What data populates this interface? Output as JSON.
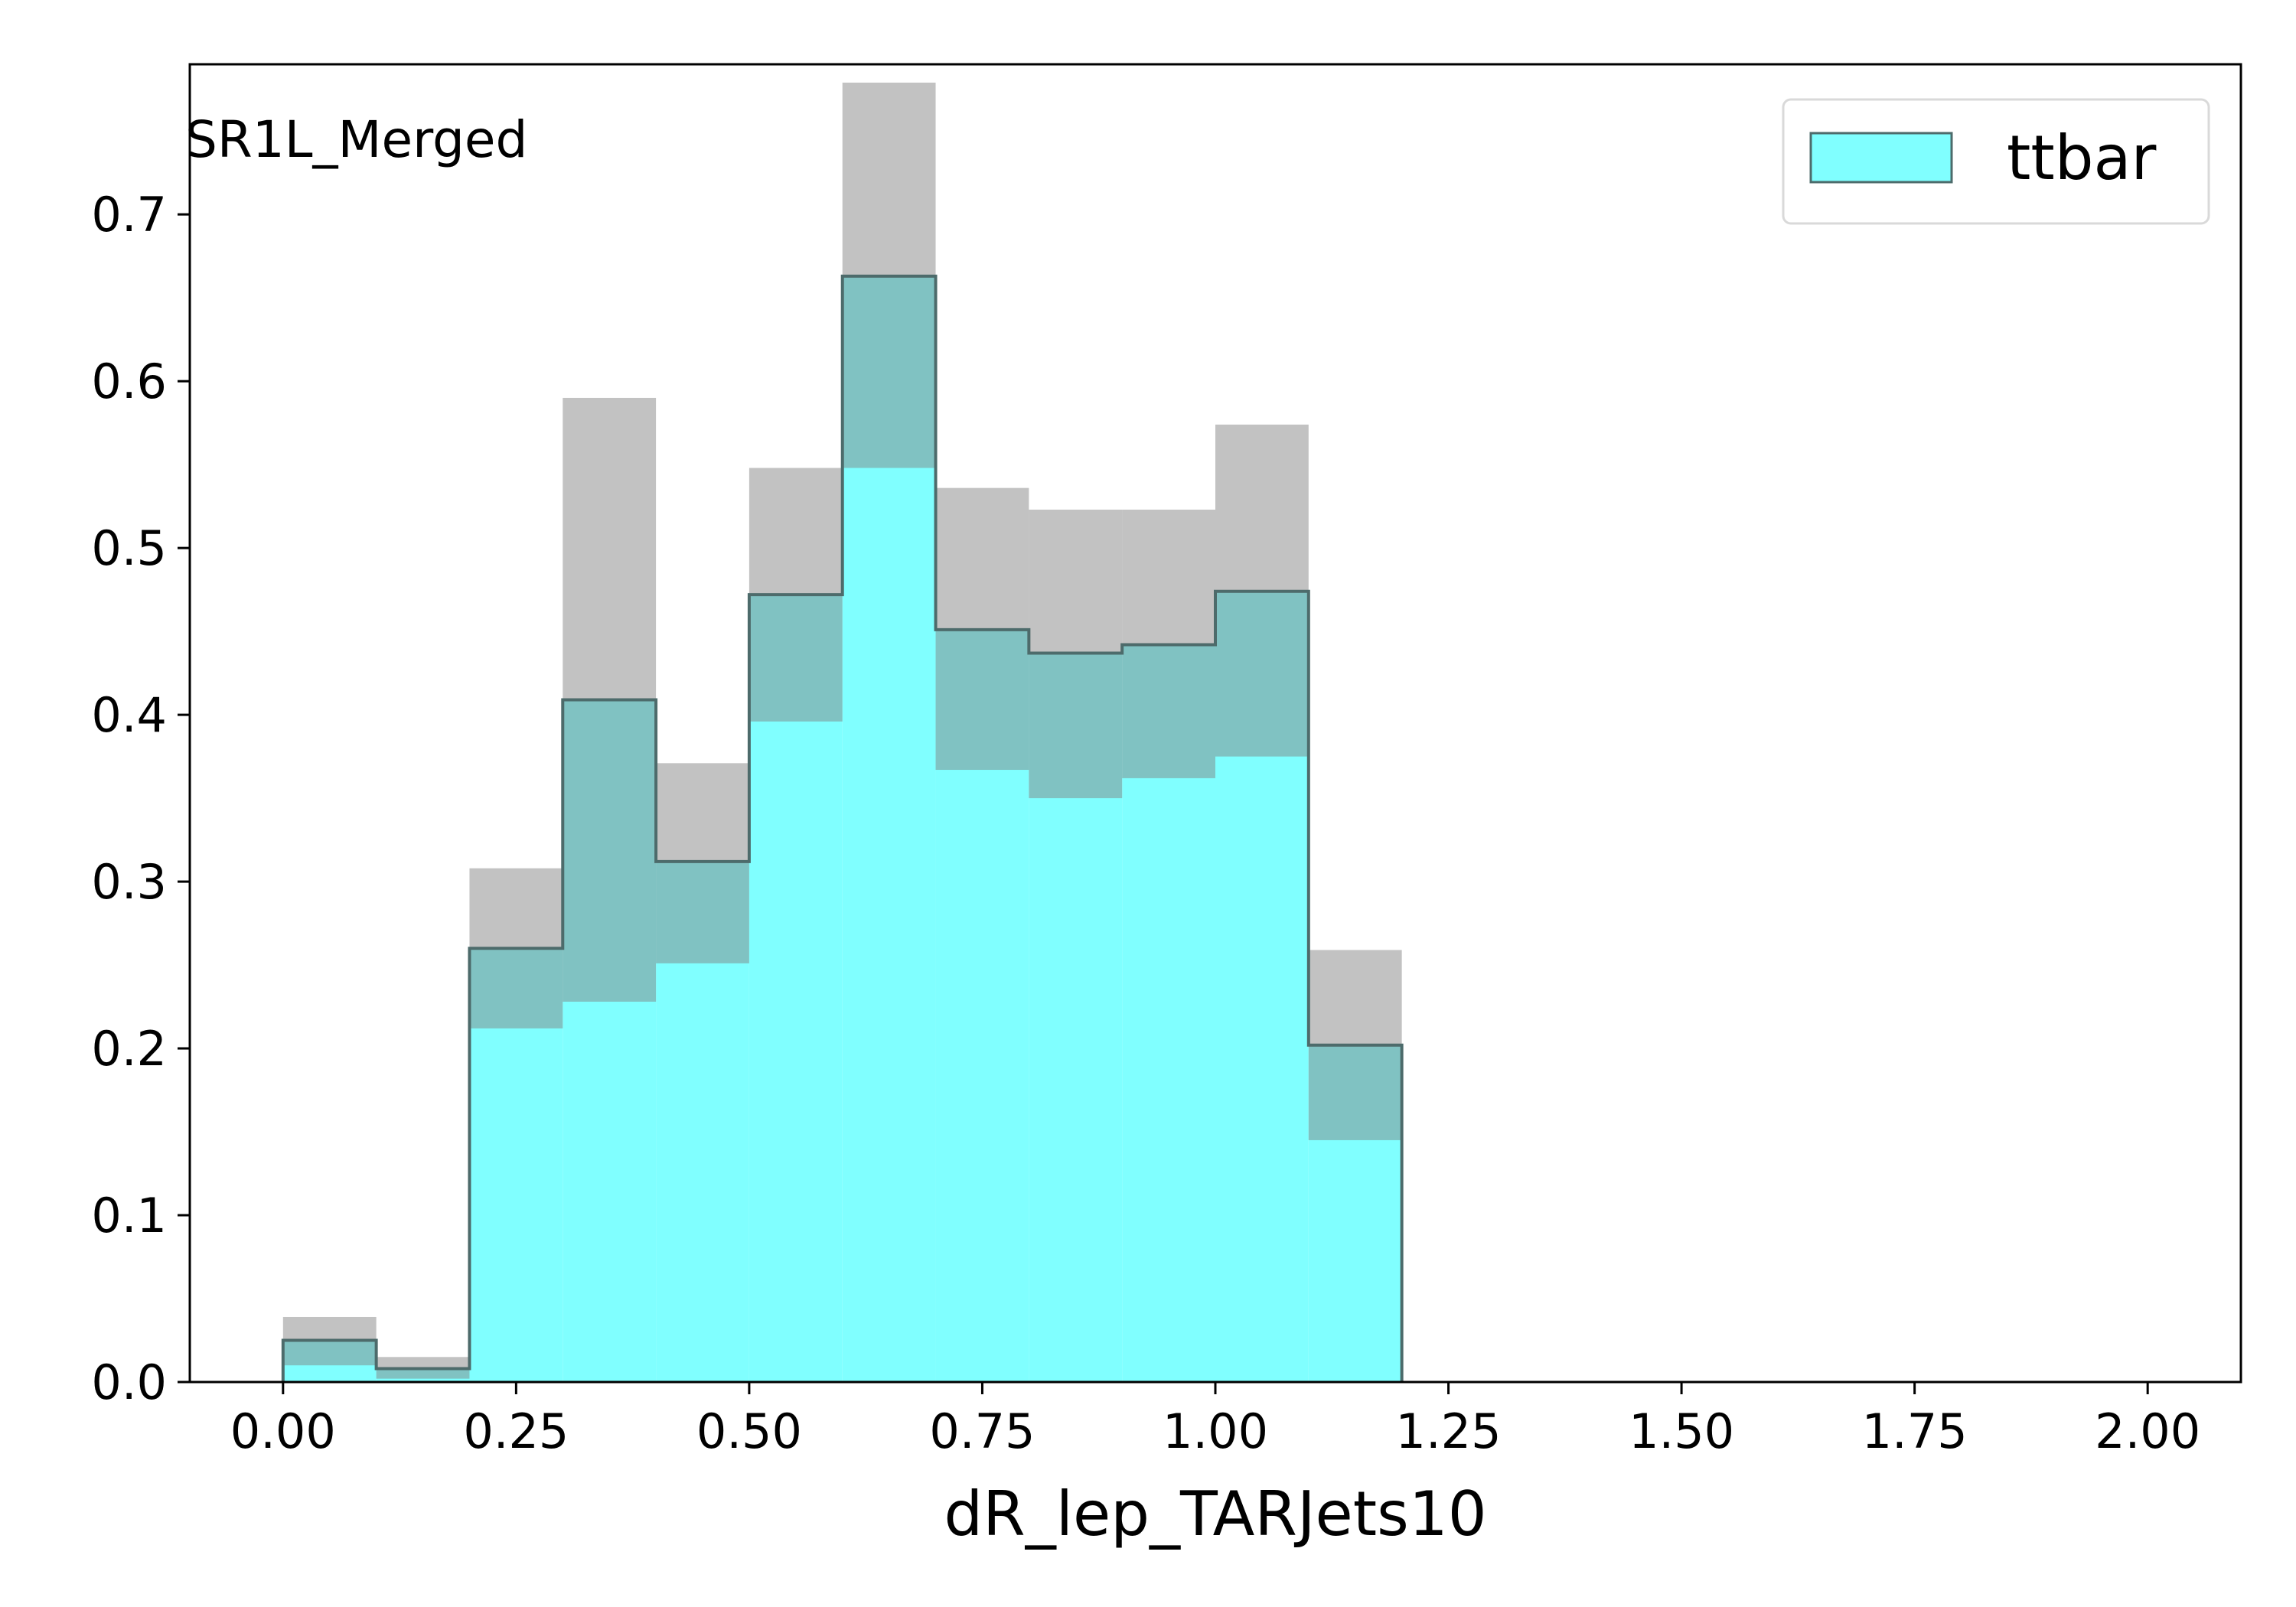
{
  "chart_data": {
    "type": "bar",
    "histogram": true,
    "region_label": "SR1L_Merged",
    "xlabel": "dR_lep_TARJets10",
    "ylabel": "",
    "xlim": [
      -0.1,
      2.1
    ],
    "ylim": [
      0,
      0.79
    ],
    "xticks": [
      0.0,
      0.25,
      0.5,
      0.75,
      1.0,
      1.25,
      1.5,
      1.75,
      2.0
    ],
    "xtick_labels": [
      "0.00",
      "0.25",
      "0.50",
      "0.75",
      "1.00",
      "1.25",
      "1.50",
      "1.75",
      "2.00"
    ],
    "yticks": [
      0.0,
      0.1,
      0.2,
      0.3,
      0.4,
      0.5,
      0.6,
      0.7
    ],
    "ytick_labels": [
      "0.0",
      "0.1",
      "0.2",
      "0.3",
      "0.4",
      "0.5",
      "0.6",
      "0.7"
    ],
    "bin_edges": [
      0.0,
      0.1,
      0.2,
      0.3,
      0.4,
      0.5,
      0.6,
      0.7,
      0.8,
      0.9,
      1.0,
      1.1,
      1.2
    ],
    "series": [
      {
        "name": "ttbar",
        "values": [
          0.025,
          0.008,
          0.26,
          0.409,
          0.312,
          0.472,
          0.663,
          0.451,
          0.437,
          0.442,
          0.474,
          0.202
        ],
        "err_low": [
          0.01,
          0.002,
          0.212,
          0.228,
          0.251,
          0.396,
          0.548,
          0.367,
          0.35,
          0.362,
          0.375,
          0.145
        ],
        "err_high": [
          0.039,
          0.015,
          0.308,
          0.59,
          0.371,
          0.548,
          0.779,
          0.536,
          0.523,
          0.523,
          0.574,
          0.259
        ]
      }
    ],
    "legend": {
      "placement": "top-right",
      "entries": [
        "ttbar"
      ]
    },
    "grid": false,
    "colors": {
      "fill": "#80ffff",
      "band": "#808080",
      "edge": "#4d6b6b"
    }
  }
}
